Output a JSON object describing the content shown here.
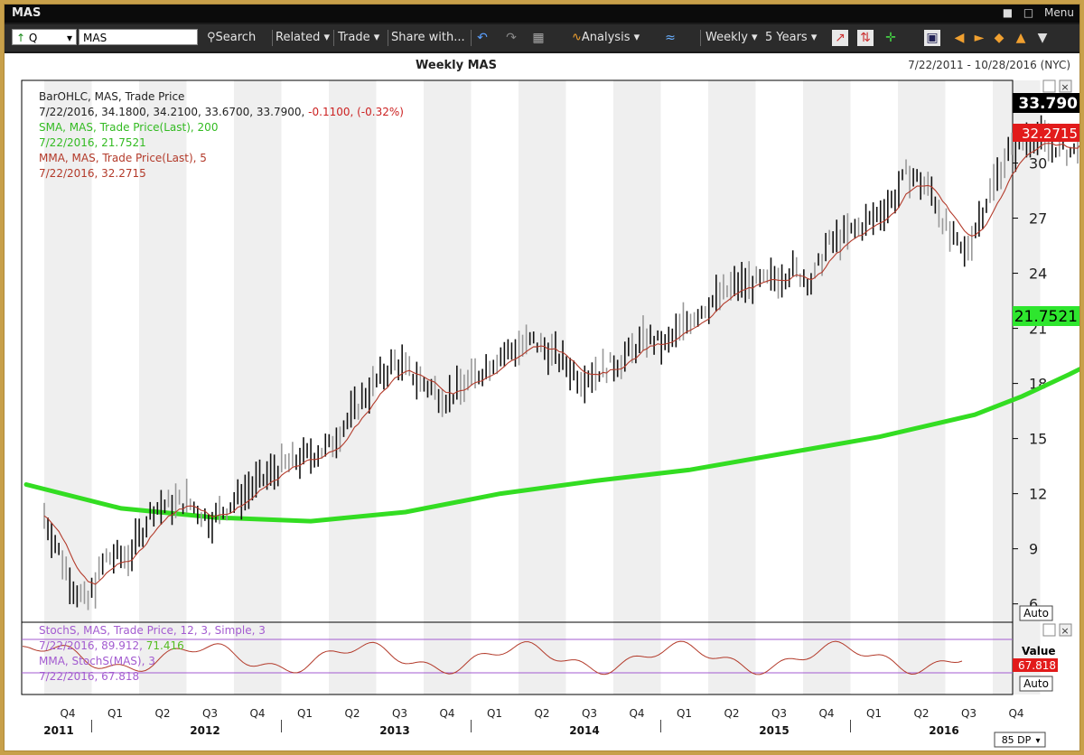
{
  "window": {
    "title": "MAS",
    "menu_label": "Menu"
  },
  "toolbar": {
    "symbol_type": "Q",
    "symbol_value": "MAS",
    "search": "Search",
    "related": "Related",
    "trade": "Trade",
    "share": "Share with...",
    "analysis": "Analysis",
    "period": "Weekly",
    "range": "5 Years"
  },
  "header": {
    "title": "Weekly MAS",
    "date_range": "7/22/2011 - 10/28/2016 (NYC)"
  },
  "legend": {
    "l1": "BarOHLC, MAS, Trade Price",
    "l2a": "7/22/2016, 34.1800, 34.2100, 33.6700, 33.7900, ",
    "l2b": "-0.1100, (-0.32%)",
    "l3": "SMA, MAS, Trade Price(Last), 200",
    "l4": "7/22/2016, 21.7521",
    "l5": "MMA, MAS, Trade Price(Last), 5",
    "l6": "7/22/2016, 32.2715"
  },
  "badges": {
    "last": "33.790",
    "mma": "32.2715",
    "sma": "21.7521",
    "auto": "Auto"
  },
  "stoch_legend": {
    "l1": "StochS, MAS, Trade Price, 12, 3, Simple, 3",
    "l2a": "7/22/2016, 89.912, ",
    "l2b": "71.416",
    "l3": "MMA, StochS(MAS), 3",
    "l4": "7/22/2016, 67.818"
  },
  "stoch_side": {
    "value_label": "Value",
    "value": "67.818",
    "auto": "Auto"
  },
  "footer": {
    "dp": "85 DP"
  },
  "chart_data": {
    "type": "line",
    "title": "Weekly MAS",
    "ylim": [
      5,
      34.5
    ],
    "yticks": [
      6,
      9,
      12,
      15,
      18,
      21,
      24,
      27,
      30
    ],
    "quarters": [
      "Q4",
      "Q1",
      "Q2",
      "Q3",
      "Q4",
      "Q1",
      "Q2",
      "Q3",
      "Q4",
      "Q1",
      "Q2",
      "Q3",
      "Q4",
      "Q1",
      "Q2",
      "Q3",
      "Q4",
      "Q1",
      "Q2",
      "Q3",
      "Q4"
    ],
    "years": [
      "2011",
      "2012",
      "2013",
      "2014",
      "2015",
      "2016"
    ],
    "last": {
      "date": "7/22/2016",
      "open": 34.18,
      "high": 34.21,
      "low": 33.67,
      "close": 33.79,
      "change": -0.11,
      "change_pct": -0.32
    },
    "series": [
      {
        "name": "SMA, MAS, Trade Price(Last), 200",
        "color": "#33dd22",
        "x": [
          0,
          2,
          4,
          6,
          8,
          10,
          12,
          14,
          16,
          18,
          20
        ],
        "values": [
          12.5,
          11.2,
          10.7,
          10.5,
          11.0,
          12.0,
          12.7,
          13.3,
          14.2,
          15.1,
          16.3
        ]
      }
    ],
    "sma_tail": [
      {
        "x": 20,
        "value": 16.3
      },
      {
        "x": 21,
        "value": 17.3
      },
      {
        "x": 22,
        "value": 18.5
      },
      {
        "x": 23,
        "value": 19.8
      },
      {
        "x": 24,
        "value": 21.0
      },
      {
        "x": 24.8,
        "value": 21.75
      }
    ],
    "price_path": [
      {
        "x": 0.0,
        "value": 10.8
      },
      {
        "x": 0.6,
        "value": 7.0
      },
      {
        "x": 0.9,
        "value": 6.0
      },
      {
        "x": 1.3,
        "value": 8.5
      },
      {
        "x": 1.8,
        "value": 8.6
      },
      {
        "x": 2.3,
        "value": 11.2
      },
      {
        "x": 3.0,
        "value": 11.6
      },
      {
        "x": 3.5,
        "value": 10.5
      },
      {
        "x": 4.3,
        "value": 12.2
      },
      {
        "x": 5.0,
        "value": 13.5
      },
      {
        "x": 6.0,
        "value": 14.5
      },
      {
        "x": 6.8,
        "value": 17.5
      },
      {
        "x": 7.4,
        "value": 19.2
      },
      {
        "x": 8.0,
        "value": 18.0
      },
      {
        "x": 8.5,
        "value": 17.2
      },
      {
        "x": 9.0,
        "value": 18.2
      },
      {
        "x": 9.6,
        "value": 19.5
      },
      {
        "x": 10.3,
        "value": 20.3
      },
      {
        "x": 10.8,
        "value": 19.5
      },
      {
        "x": 11.3,
        "value": 18.3
      },
      {
        "x": 11.8,
        "value": 18.8
      },
      {
        "x": 12.2,
        "value": 19.3
      },
      {
        "x": 12.7,
        "value": 20.5
      },
      {
        "x": 13.1,
        "value": 20.0
      },
      {
        "x": 13.6,
        "value": 21.5
      },
      {
        "x": 14.0,
        "value": 22.3
      },
      {
        "x": 14.6,
        "value": 23.4
      },
      {
        "x": 15.2,
        "value": 23.5
      },
      {
        "x": 15.8,
        "value": 24.2
      },
      {
        "x": 16.2,
        "value": 23.5
      },
      {
        "x": 16.5,
        "value": 25.5
      },
      {
        "x": 17.0,
        "value": 26.2
      },
      {
        "x": 17.5,
        "value": 27.0
      },
      {
        "x": 17.9,
        "value": 28.0
      },
      {
        "x": 18.2,
        "value": 29.5
      },
      {
        "x": 18.7,
        "value": 28.5
      },
      {
        "x": 19.1,
        "value": 26.0
      },
      {
        "x": 19.4,
        "value": 25.0
      },
      {
        "x": 19.8,
        "value": 27.5
      },
      {
        "x": 20.3,
        "value": 30.5
      },
      {
        "x": 20.8,
        "value": 31.5
      },
      {
        "x": 21.3,
        "value": 31.0
      },
      {
        "x": 21.7,
        "value": 30.5
      },
      {
        "x": 22.0,
        "value": 32.7
      },
      {
        "x": 22.3,
        "value": 33.8
      }
    ],
    "stoch": {
      "name": "StochS, MAS, Trade Price, 12, 3, Simple, 3",
      "last": 89.912,
      "d": 71.416,
      "mma": 67.818
    }
  }
}
